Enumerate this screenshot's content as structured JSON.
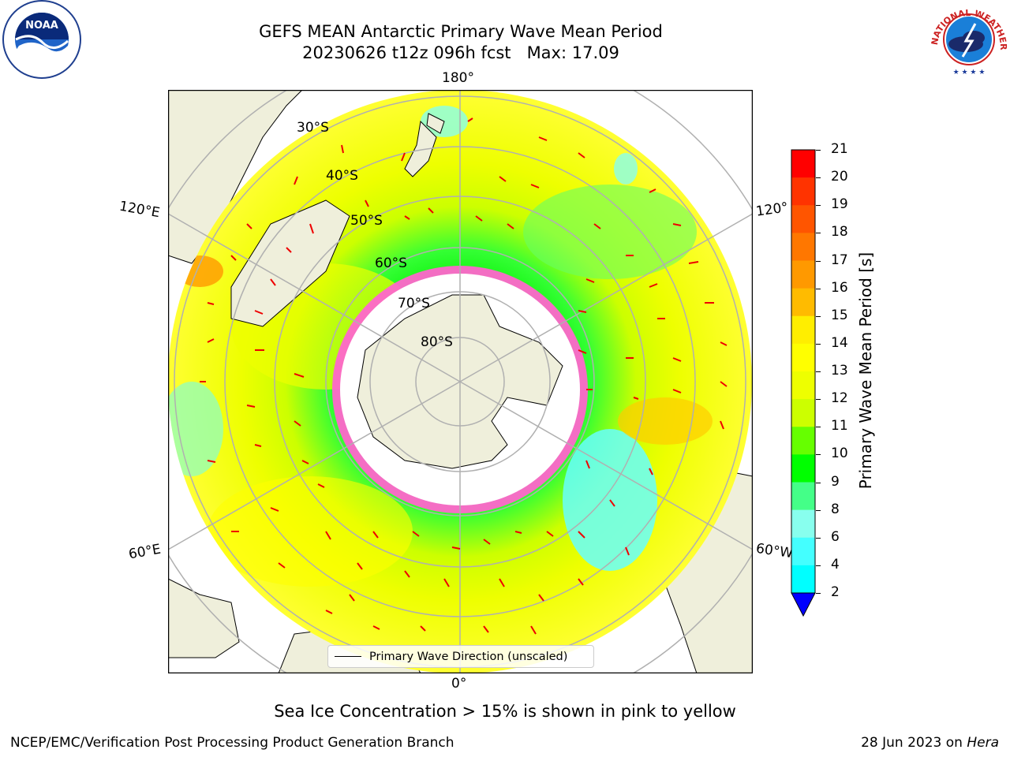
{
  "title": "GEFS MEAN Antarctic Primary Wave Mean Period",
  "subtitle": "20230626 t12z 096h fcst   Max: 17.09",
  "logos": {
    "left": "NOAA",
    "right": "NATIONAL WEATHER SERVICE"
  },
  "map": {
    "lon_labels": {
      "top": "180°",
      "bottom": "0°",
      "left_upper": "120°E",
      "left_lower": "60°E",
      "right_upper": "120°",
      "right_lower": "60°W"
    },
    "lat_labels": [
      "30°S",
      "40°S",
      "50°S",
      "60°S",
      "70°S",
      "80°S"
    ],
    "legend_label": "Primary Wave Direction (unscaled)"
  },
  "colorbar": {
    "label": "Primary Wave Mean Period [s]",
    "ticks": [
      "21",
      "20",
      "19",
      "18",
      "17",
      "16",
      "15",
      "14",
      "13",
      "12",
      "11",
      "10",
      "9",
      "8",
      "6",
      "4",
      "2"
    ],
    "colors": [
      "#ff0000",
      "#ff3300",
      "#ff5500",
      "#ff7700",
      "#ff9900",
      "#ffbb00",
      "#ffee00",
      "#ffff00",
      "#eeff00",
      "#ccff00",
      "#66ff00",
      "#00ff00",
      "#44ff88",
      "#88ffee",
      "#44ffff",
      "#00ffff",
      "#00ccff",
      "#0077ff",
      "#0000ff"
    ]
  },
  "footer": {
    "note": "Sea Ice Concentration > 15% is shown in pink to yellow",
    "left": "NCEP/EMC/Verification Post Processing Product Generation Branch",
    "right_date": "28 Jun 2023 on ",
    "right_host": "Hera"
  }
}
